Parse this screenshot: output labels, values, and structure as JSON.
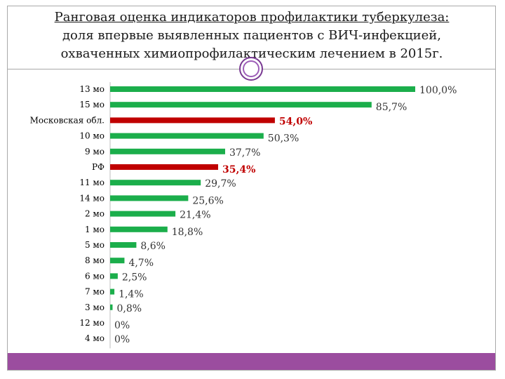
{
  "title": {
    "line1": "Ранговая оценка индикаторов профилактики туберкулеза:",
    "line2": "доля впервые выявленных пациентов с ВИЧ-инфекцией,",
    "line3": "охваченных химиопрофилактическим лечением в 2015г."
  },
  "colors": {
    "bar": "#1bae4b",
    "highlight": "#c00000",
    "footer": "#9b4d9f"
  },
  "chart_data": {
    "type": "bar",
    "orientation": "horizontal",
    "xlim": [
      0,
      100
    ],
    "grid": false,
    "categories": [
      "13 мо",
      "15 мо",
      "Московская обл.",
      "10 мо",
      "9 мо",
      "РФ",
      "11 мо",
      "14 мо",
      "2 мо",
      "1 мо",
      "5 мо",
      "8 мо",
      "6 мо",
      "7 мо",
      "3 мо",
      "12 мо",
      "4 мо"
    ],
    "values": [
      100.0,
      85.7,
      54.0,
      50.3,
      37.7,
      35.4,
      29.7,
      25.6,
      21.4,
      18.8,
      8.6,
      4.7,
      2.5,
      1.4,
      0.8,
      0,
      0
    ],
    "value_labels": [
      "100,0%",
      "85,7%",
      "54,0%",
      "50,3%",
      "37,7%",
      "35,4%",
      "29,7%",
      "25,6%",
      "21,4%",
      "18,8%",
      "8,6%",
      "4,7%",
      "2,5%",
      "1,4%",
      "0,8%",
      "0%",
      "0%"
    ],
    "highlight": [
      "Московская обл.",
      "РФ"
    ]
  }
}
